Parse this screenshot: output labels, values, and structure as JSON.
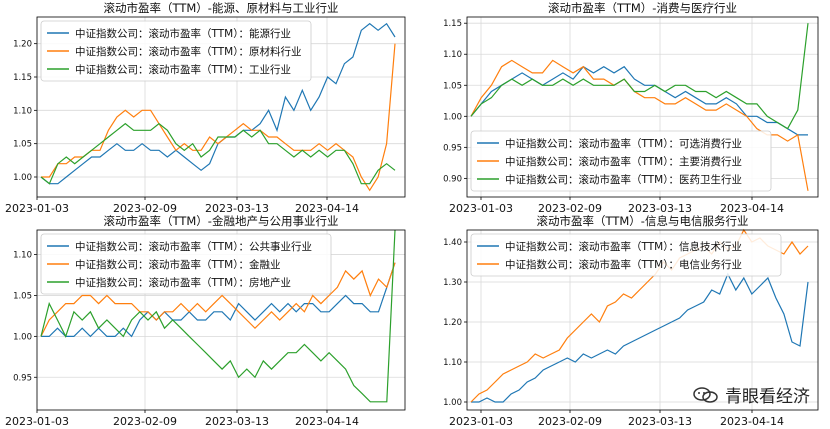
{
  "x_ticks": [
    "2023-01-03",
    "2023-02-09",
    "2023-03-13",
    "2023-04-14"
  ],
  "colors": {
    "blue": "#1f77b4",
    "orange": "#ff7f0e",
    "green": "#2ca02c"
  },
  "watermark": "青眼看经济",
  "chart_data": [
    {
      "type": "line",
      "title": "滚动市盈率（TTM）-能源、原材料与工业行业",
      "ylim": [
        0.97,
        1.24
      ],
      "yticks": [
        1.0,
        1.05,
        1.1,
        1.15,
        1.2
      ],
      "grid": true,
      "legend": "upper-left",
      "series": [
        {
          "name": "中证指数公司：滚动市盈率（TTM）：能源行业",
          "color": "blue",
          "values": [
            1.0,
            0.99,
            0.99,
            1.0,
            1.01,
            1.02,
            1.03,
            1.03,
            1.04,
            1.05,
            1.04,
            1.04,
            1.05,
            1.04,
            1.04,
            1.03,
            1.04,
            1.03,
            1.02,
            1.01,
            1.02,
            1.05,
            1.06,
            1.06,
            1.07,
            1.07,
            1.08,
            1.1,
            1.07,
            1.12,
            1.1,
            1.13,
            1.1,
            1.12,
            1.15,
            1.14,
            1.17,
            1.18,
            1.22,
            1.23,
            1.22,
            1.23,
            1.21
          ]
        },
        {
          "name": "中证指数公司：滚动市盈率（TTM）：原材料行业",
          "color": "orange",
          "values": [
            1.0,
            1.0,
            1.02,
            1.02,
            1.03,
            1.03,
            1.04,
            1.04,
            1.07,
            1.09,
            1.1,
            1.09,
            1.1,
            1.1,
            1.08,
            1.06,
            1.04,
            1.05,
            1.04,
            1.04,
            1.06,
            1.05,
            1.06,
            1.07,
            1.08,
            1.07,
            1.07,
            1.06,
            1.06,
            1.05,
            1.04,
            1.04,
            1.04,
            1.05,
            1.04,
            1.05,
            1.04,
            1.03,
            1.0,
            0.98,
            1.0,
            1.05,
            1.2
          ]
        },
        {
          "name": "中证指数公司：滚动市盈率（TTM）：工业行业",
          "color": "green",
          "values": [
            1.0,
            0.99,
            1.02,
            1.03,
            1.02,
            1.03,
            1.04,
            1.05,
            1.06,
            1.07,
            1.08,
            1.07,
            1.07,
            1.07,
            1.08,
            1.07,
            1.05,
            1.04,
            1.05,
            1.03,
            1.04,
            1.06,
            1.06,
            1.06,
            1.07,
            1.06,
            1.07,
            1.05,
            1.05,
            1.04,
            1.03,
            1.04,
            1.03,
            1.04,
            1.03,
            1.04,
            1.04,
            1.02,
            0.99,
            0.99,
            1.01,
            1.02,
            1.01
          ]
        }
      ]
    },
    {
      "type": "line",
      "title": "滚动市盈率（TTM）-消费与医疗行业",
      "ylim": [
        0.87,
        1.16
      ],
      "yticks": [
        0.9,
        0.95,
        1.0,
        1.05,
        1.1,
        1.15
      ],
      "grid": true,
      "legend": "lower-left",
      "series": [
        {
          "name": "中证指数公司：滚动市盈率（TTM）：可选消费行业",
          "color": "blue",
          "values": [
            1.0,
            1.02,
            1.04,
            1.05,
            1.06,
            1.07,
            1.06,
            1.05,
            1.06,
            1.07,
            1.06,
            1.08,
            1.07,
            1.08,
            1.07,
            1.08,
            1.06,
            1.05,
            1.05,
            1.04,
            1.03,
            1.04,
            1.03,
            1.02,
            1.02,
            1.03,
            1.02,
            1.0,
            1.0,
            0.99,
            0.99,
            0.98,
            0.97,
            0.97
          ]
        },
        {
          "name": "中证指数公司：滚动市盈率（TTM）：主要消费行业",
          "color": "orange",
          "values": [
            1.0,
            1.03,
            1.05,
            1.08,
            1.09,
            1.08,
            1.07,
            1.07,
            1.09,
            1.08,
            1.07,
            1.08,
            1.06,
            1.06,
            1.05,
            1.06,
            1.04,
            1.03,
            1.03,
            1.02,
            1.02,
            1.03,
            1.02,
            1.01,
            1.01,
            1.02,
            1.01,
            1.0,
            0.98,
            0.97,
            0.97,
            0.96,
            0.97,
            0.88
          ]
        },
        {
          "name": "中证指数公司：滚动市盈率（TTM）：医药卫生行业",
          "color": "green",
          "values": [
            1.0,
            1.02,
            1.03,
            1.05,
            1.06,
            1.05,
            1.06,
            1.05,
            1.05,
            1.06,
            1.05,
            1.06,
            1.05,
            1.05,
            1.05,
            1.06,
            1.04,
            1.04,
            1.05,
            1.04,
            1.05,
            1.05,
            1.04,
            1.04,
            1.03,
            1.04,
            1.03,
            1.02,
            1.02,
            1.0,
            0.99,
            0.98,
            1.01,
            1.15
          ]
        }
      ]
    },
    {
      "type": "line",
      "title": "滚动市盈率（TTM）-金融地产与公用事业行业",
      "ylim": [
        0.91,
        1.13
      ],
      "yticks": [
        0.95,
        1.0,
        1.05,
        1.1
      ],
      "grid": true,
      "legend": "upper-left",
      "series": [
        {
          "name": "中证指数公司：滚动市盈率（TTM）：公共事业行业",
          "color": "blue",
          "values": [
            1.0,
            1.0,
            1.01,
            1.0,
            1.0,
            1.01,
            1.0,
            1.01,
            1.0,
            1.0,
            1.01,
            1.0,
            1.02,
            1.03,
            1.02,
            1.03,
            1.02,
            1.02,
            1.03,
            1.02,
            1.02,
            1.03,
            1.03,
            1.02,
            1.04,
            1.03,
            1.02,
            1.03,
            1.04,
            1.03,
            1.04,
            1.03,
            1.04,
            1.04,
            1.03,
            1.03,
            1.04,
            1.05,
            1.04,
            1.04,
            1.03,
            1.03,
            1.06,
            1.09
          ]
        },
        {
          "name": "中证指数公司：滚动市盈率（TTM）：金融业",
          "color": "orange",
          "values": [
            1.0,
            1.02,
            1.03,
            1.04,
            1.04,
            1.05,
            1.05,
            1.04,
            1.05,
            1.04,
            1.04,
            1.04,
            1.03,
            1.03,
            1.02,
            1.03,
            1.03,
            1.04,
            1.03,
            1.04,
            1.03,
            1.04,
            1.05,
            1.04,
            1.03,
            1.02,
            1.01,
            1.02,
            1.03,
            1.02,
            1.03,
            1.04,
            1.03,
            1.05,
            1.04,
            1.05,
            1.06,
            1.08,
            1.07,
            1.08,
            1.05,
            1.07,
            1.06,
            1.09
          ]
        },
        {
          "name": "中证指数公司：滚动市盈率（TTM）：房地产业",
          "color": "green",
          "values": [
            1.0,
            1.04,
            1.02,
            1.0,
            1.03,
            1.02,
            1.03,
            1.01,
            1.02,
            1.01,
            1.0,
            1.02,
            1.03,
            1.02,
            1.03,
            1.01,
            1.02,
            1.01,
            1.0,
            0.99,
            0.98,
            0.97,
            0.96,
            0.97,
            0.95,
            0.96,
            0.95,
            0.97,
            0.96,
            0.97,
            0.98,
            0.98,
            0.99,
            0.98,
            0.97,
            0.98,
            0.97,
            0.96,
            0.94,
            0.93,
            0.92,
            0.92,
            0.92,
            1.13
          ]
        }
      ]
    },
    {
      "type": "line",
      "title": "滚动市盈率（TTM）-信息与电信服务行业",
      "ylim": [
        0.98,
        1.43
      ],
      "yticks": [
        1.0,
        1.1,
        1.2,
        1.3,
        1.4
      ],
      "grid": true,
      "legend": "upper-left",
      "series": [
        {
          "name": "中证指数公司：滚动市盈率（TTM）：信息技术行业",
          "color": "blue",
          "values": [
            1.0,
            1.0,
            1.01,
            1.0,
            1.0,
            1.02,
            1.03,
            1.05,
            1.06,
            1.08,
            1.09,
            1.1,
            1.11,
            1.1,
            1.12,
            1.11,
            1.12,
            1.13,
            1.12,
            1.14,
            1.15,
            1.16,
            1.17,
            1.18,
            1.19,
            1.2,
            1.21,
            1.23,
            1.24,
            1.25,
            1.28,
            1.27,
            1.32,
            1.28,
            1.31,
            1.27,
            1.29,
            1.31,
            1.26,
            1.22,
            1.15,
            1.14,
            1.3
          ]
        },
        {
          "name": "中证指数公司：滚动市盈率（TTM）：电信业务行业",
          "color": "orange",
          "values": [
            1.0,
            1.02,
            1.03,
            1.05,
            1.07,
            1.08,
            1.09,
            1.1,
            1.12,
            1.11,
            1.12,
            1.13,
            1.16,
            1.18,
            1.2,
            1.22,
            1.2,
            1.24,
            1.25,
            1.27,
            1.26,
            1.28,
            1.3,
            1.32,
            1.35,
            1.33,
            1.36,
            1.37,
            1.38,
            1.39,
            1.37,
            1.4,
            1.38,
            1.39,
            1.43,
            1.4,
            1.41,
            1.39,
            1.38,
            1.37,
            1.4,
            1.37,
            1.39
          ]
        }
      ]
    }
  ]
}
